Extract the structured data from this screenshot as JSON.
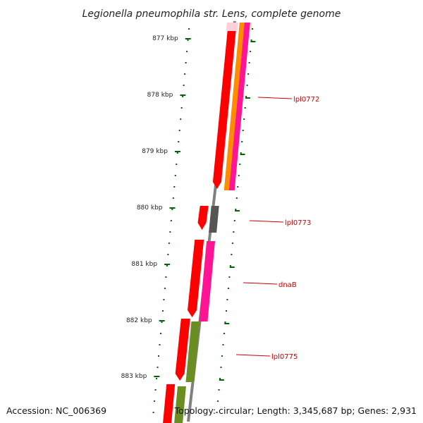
{
  "title": "Legionella pneumophila str. Lens, complete genome",
  "footer": {
    "accession": "Accession: NC_006369",
    "summary": "Topology: circular; Length: 3,345,687 bp; Genes: 2,931"
  },
  "ticks": [
    "877 kbp",
    "878 kbp",
    "879 kbp",
    "880 kbp",
    "881 kbp",
    "882 kbp",
    "883 kbp"
  ],
  "gene_labels": [
    "lpl0772",
    "lpl0773",
    "dnaB",
    "lpl0775"
  ],
  "colors": {
    "cds_red": "#ff0000",
    "orange": "#ff8c00",
    "pink": "#ff1493",
    "olive": "#6b8e23",
    "gray": "#555555",
    "tick_green": "#006400",
    "label_red": "#cc0000",
    "backbone": "#808080"
  }
}
